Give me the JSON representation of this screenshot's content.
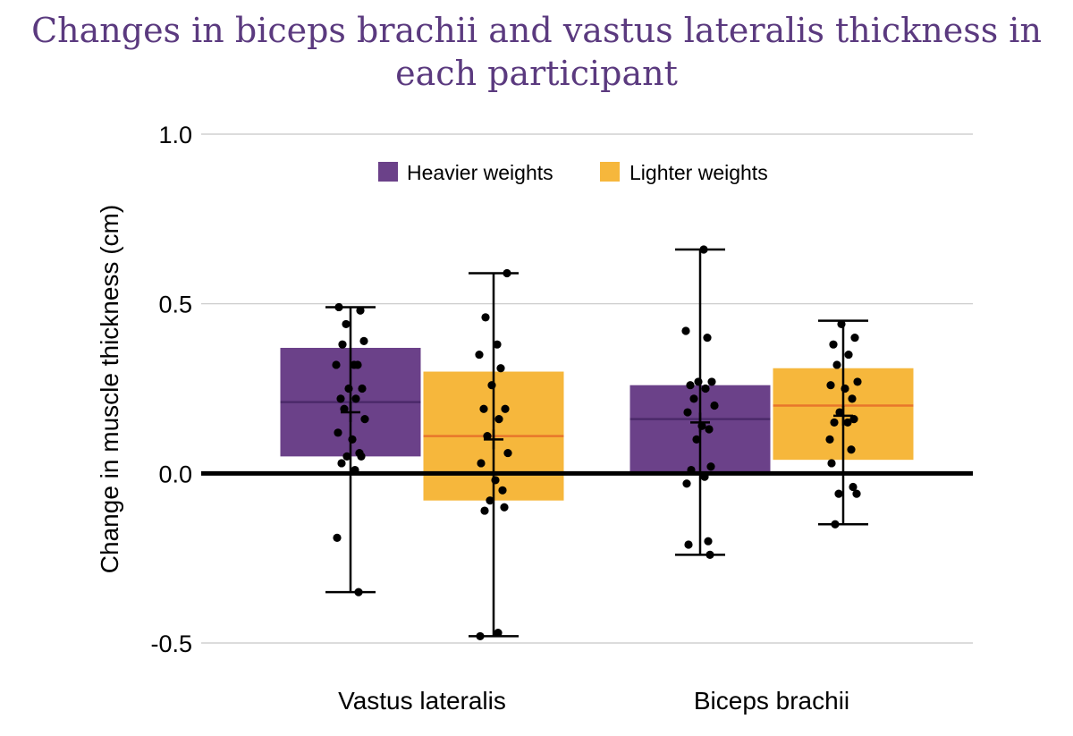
{
  "chart_data": {
    "type": "box",
    "title": "Changes in biceps brachii and vastus lateralis thickness in each participant",
    "xlabel": "",
    "ylabel": "Change in muscle thickness (cm)",
    "ylim": [
      -0.5,
      1.0
    ],
    "yticks": [
      1.0,
      0.5,
      0.0,
      -0.5
    ],
    "ytick_labels": [
      "1.0",
      "0.5",
      "0.0",
      "-0.5"
    ],
    "grid": true,
    "legend_position": "top-center",
    "categories": [
      "Vastus lateralis",
      "Biceps brachii"
    ],
    "series": [
      {
        "name": "Heavier weights",
        "color": "#6b4189",
        "median_color": "#4b2a6a",
        "boxes": [
          {
            "category": "Vastus lateralis",
            "q1": 0.05,
            "median": 0.21,
            "q3": 0.37,
            "whisker_low": -0.35,
            "whisker_high": 0.49,
            "mean": 0.18,
            "points": [
              0.49,
              0.48,
              0.44,
              0.39,
              0.38,
              0.32,
              0.32,
              0.32,
              0.25,
              0.25,
              0.22,
              0.22,
              0.19,
              0.16,
              0.12,
              0.1,
              0.06,
              0.05,
              0.05,
              0.03,
              0.01,
              -0.19,
              -0.35
            ]
          },
          {
            "category": "Biceps brachii",
            "q1": 0.0,
            "median": 0.16,
            "q3": 0.26,
            "whisker_low": -0.24,
            "whisker_high": 0.66,
            "mean": 0.15,
            "points": [
              0.66,
              0.42,
              0.4,
              0.27,
              0.27,
              0.26,
              0.25,
              0.22,
              0.2,
              0.18,
              0.14,
              0.13,
              0.1,
              0.02,
              0.01,
              -0.01,
              -0.03,
              -0.2,
              -0.21,
              -0.24
            ]
          }
        ]
      },
      {
        "name": "Lighter weights",
        "color": "#f6b73c",
        "median_color": "#e8762b",
        "boxes": [
          {
            "category": "Vastus lateralis",
            "q1": -0.08,
            "median": 0.11,
            "q3": 0.3,
            "whisker_low": -0.48,
            "whisker_high": 0.59,
            "mean": 0.1,
            "points": [
              0.59,
              0.46,
              0.38,
              0.35,
              0.31,
              0.26,
              0.19,
              0.19,
              0.16,
              0.11,
              0.06,
              0.03,
              -0.02,
              -0.05,
              -0.08,
              -0.1,
              -0.11,
              -0.47,
              -0.48
            ]
          },
          {
            "category": "Biceps brachii",
            "q1": 0.04,
            "median": 0.2,
            "q3": 0.31,
            "whisker_low": -0.15,
            "whisker_high": 0.45,
            "mean": 0.17,
            "points": [
              0.44,
              0.4,
              0.38,
              0.35,
              0.32,
              0.27,
              0.26,
              0.25,
              0.22,
              0.18,
              0.16,
              0.15,
              0.15,
              0.1,
              0.07,
              0.03,
              -0.04,
              -0.06,
              -0.06,
              -0.15
            ]
          }
        ]
      }
    ]
  }
}
